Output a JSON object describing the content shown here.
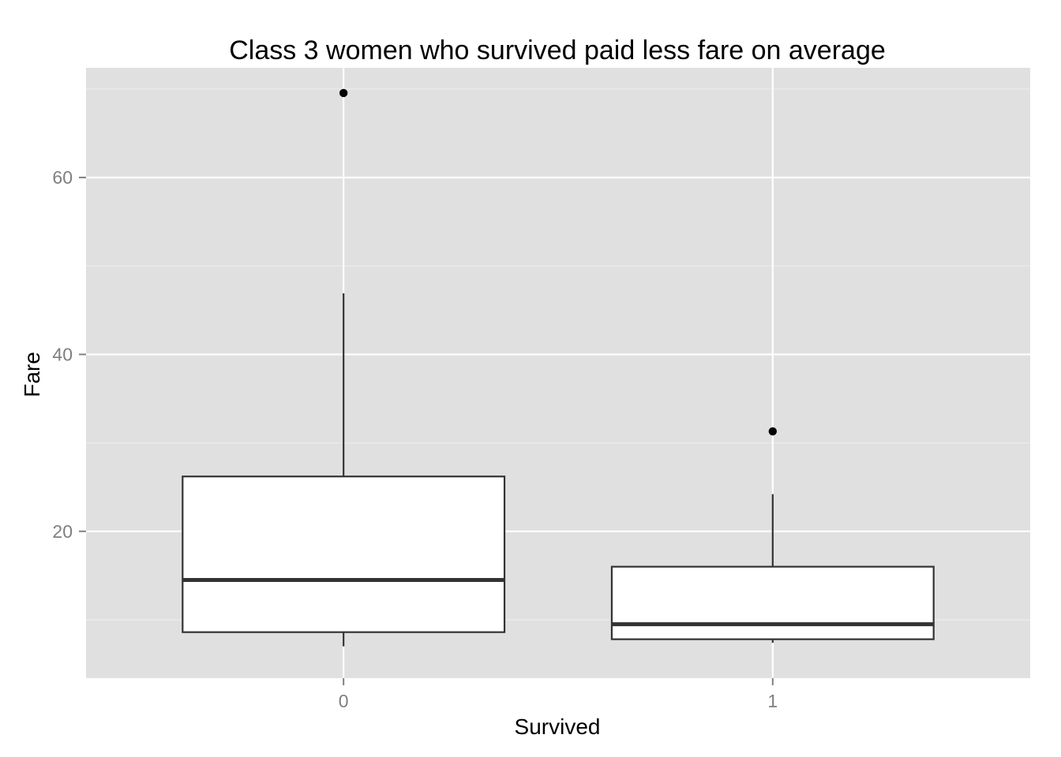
{
  "chart_data": {
    "type": "boxplot",
    "title": "Class 3 women who survived paid less fare on average",
    "xlabel": "Survived",
    "ylabel": "Fare",
    "categories": [
      "0",
      "1"
    ],
    "y_ticks": [
      20,
      40,
      60
    ],
    "y_tick_labels": [
      "20",
      "40",
      "60"
    ],
    "ylim": [
      3.4,
      72.4
    ],
    "grid": true,
    "colors": {
      "panel_background": "#e0e0e0",
      "grid_major": "#ffffff",
      "grid_minor": "#ececec",
      "box_fill": "#ffffff",
      "box_stroke": "#333333",
      "outlier": "#000000",
      "tick_label": "#7f7f7f"
    },
    "boxes": [
      {
        "category": "0",
        "whisker_low": 7.0,
        "q1": 8.6,
        "median": 14.5,
        "q3": 26.2,
        "whisker_high": 46.9,
        "outliers": [
          69.55
        ]
      },
      {
        "category": "1",
        "whisker_low": 7.4,
        "q1": 7.8,
        "median": 9.5,
        "q3": 16.0,
        "whisker_high": 24.2,
        "outliers": [
          31.3
        ]
      }
    ]
  }
}
